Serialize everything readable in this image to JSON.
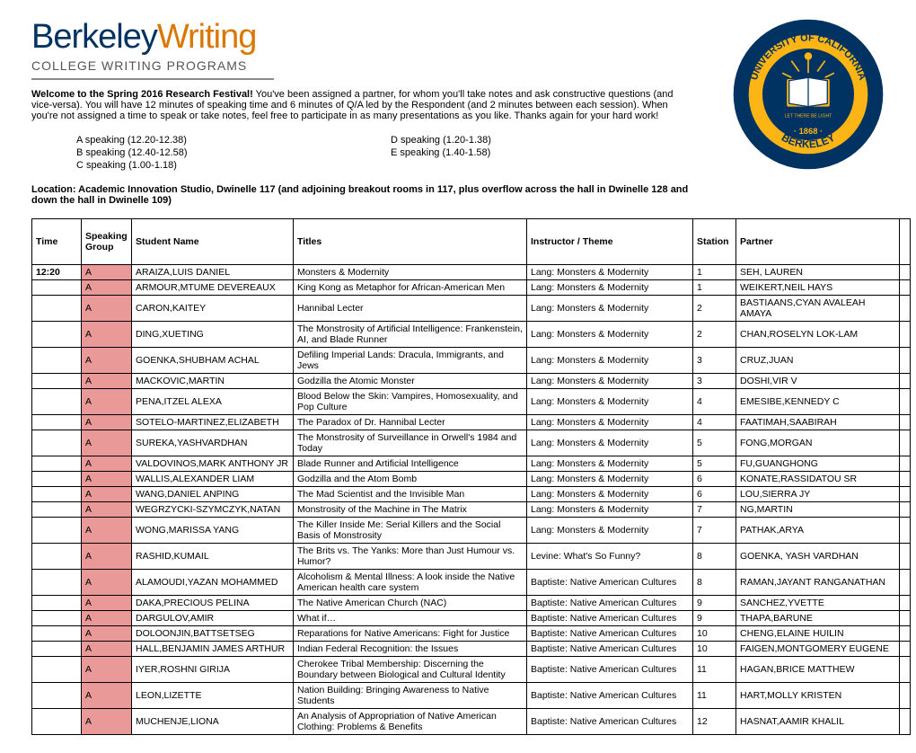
{
  "logo": {
    "p1": "Berkeley",
    "p2": "Writing",
    "sub": "COLLEGE WRITING PROGRAMS"
  },
  "introB": "Welcome to the Spring 2016 Research Festival!",
  "intro": " You've been assigned a partner, for whom you'll take notes and ask constructive questions (and vice-versa). You will have 12 minutes of speaking time and 6 minutes of Q/A led by the Respondent (and 2 minutes between each session). When you're not assigned a time to speak or take notes, feel free to participate in as many presentations as you like. Thanks again for your hard work!",
  "speakL": [
    "A speaking (12.20-12.38)",
    "B speaking (12.40-12.58)",
    "C speaking (1.00-1.18)"
  ],
  "speakR": [
    "D speaking (1.20-1.38)",
    "E speaking (1.40-1.58)",
    ""
  ],
  "location": "Location: Academic Innovation Studio, Dwinelle 117 (and adjoining breakout rooms in 117, plus overflow across the hall in Dwinelle 128 and down the hall in Dwinelle 109)",
  "headers": {
    "time": "Time",
    "grp": "Speaking Group",
    "name": "Student Name",
    "titles": "Titles",
    "instr": "Instructor / Theme",
    "stn": "Station",
    "partner": "Partner"
  },
  "timeLabel": "12:20",
  "rows": [
    [
      "A",
      "ARAIZA,LUIS DANIEL",
      "Monsters & Modernity",
      "Lang: Monsters & Modernity",
      "1",
      "SEH, LAUREN"
    ],
    [
      "A",
      "ARMOUR,MTUME DEVEREAUX",
      "King Kong as Metaphor for African-American Men",
      "Lang: Monsters & Modernity",
      "1",
      "WEIKERT,NEIL HAYS"
    ],
    [
      "A",
      "CARON,KAITEY",
      "Hannibal Lecter",
      "Lang: Monsters & Modernity",
      "2",
      "BASTIAANS,CYAN AVALEAH AMAYA"
    ],
    [
      "A",
      "DING,XUETING",
      "The Monstrosity of Artificial Intelligence: Frankenstein, AI, and Blade Runner",
      "Lang: Monsters & Modernity",
      "2",
      "CHAN,ROSELYN LOK-LAM"
    ],
    [
      "A",
      "GOENKA,SHUBHAM ACHAL",
      "Defiling Imperial Lands: Dracula, Immigrants, and Jews",
      "Lang: Monsters & Modernity",
      "3",
      "CRUZ,JUAN"
    ],
    [
      "A",
      "MACKOVIC,MARTIN",
      "Godzilla the Atomic Monster",
      "Lang: Monsters & Modernity",
      "3",
      "DOSHI,VIR V"
    ],
    [
      "A",
      "PENA,ITZEL ALEXA",
      "Blood Below the Skin: Vampires, Homosexuality, and Pop Culture",
      "Lang: Monsters & Modernity",
      "4",
      "EMESIBE,KENNEDY C"
    ],
    [
      "A",
      "SOTELO-MARTINEZ,ELIZABETH",
      "The Paradox of Dr. Hannibal Lecter",
      "Lang: Monsters & Modernity",
      "4",
      "FAATIMAH,SAABIRAH"
    ],
    [
      "A",
      "SUREKA,YASHVARDHAN",
      "The Monstrosity of Surveillance in Orwell's 1984 and Today",
      "Lang: Monsters & Modernity",
      "5",
      "FONG,MORGAN"
    ],
    [
      "A",
      "VALDOVINOS,MARK ANTHONY JR",
      "Blade Runner and Artificial Intelligence",
      "Lang: Monsters & Modernity",
      "5",
      "FU,GUANGHONG"
    ],
    [
      "A",
      "WALLIS,ALEXANDER LIAM",
      "Godzilla and the Atom Bomb",
      "Lang: Monsters & Modernity",
      "6",
      "KONATE,RASSIDATOU SR"
    ],
    [
      "A",
      "WANG,DANIEL ANPING",
      "The Mad Scientist and the Invisible Man",
      "Lang: Monsters & Modernity",
      "6",
      "LOU,SIERRA JY"
    ],
    [
      "A",
      "WEGRZYCKI-SZYMCZYK,NATAN",
      "Monstrosity of the Machine in The Matrix",
      "Lang: Monsters & Modernity",
      "7",
      "NG,MARTIN"
    ],
    [
      "A",
      "WONG,MARISSA YANG",
      "The Killer Inside Me: Serial Killers and the Social Basis of Monstrosity",
      "Lang: Monsters & Modernity",
      "7",
      "PATHAK,ARYA"
    ],
    [
      "A",
      "RASHID,KUMAIL",
      "The Brits vs. The Yanks: More than Just Humour vs. Humor?",
      "Levine: What's So Funny?",
      "8",
      "GOENKA, YASH VARDHAN"
    ],
    [
      "A",
      "ALAMOUDI,YAZAN MOHAMMED",
      "Alcoholism & Mental Illness: A look inside the Native American health care system",
      "Baptiste: Native American Cultures",
      "8",
      "RAMAN,JAYANT RANGANATHAN"
    ],
    [
      "A",
      "DAKA,PRECIOUS PELINA",
      "The Native American Church (NAC)",
      "Baptiste: Native American Cultures",
      "9",
      "SANCHEZ,YVETTE"
    ],
    [
      "A",
      "DARGULOV,AMIR",
      "What if…",
      "Baptiste: Native American Cultures",
      "9",
      "THAPA,BARUNE"
    ],
    [
      "A",
      "DOLOONJIN,BATTSETSEG",
      "Reparations for Native Americans: Fight for Justice",
      "Baptiste: Native American Cultures",
      "10",
      "CHENG,ELAINE HUILIN"
    ],
    [
      "A",
      "HALL,BENJAMIN JAMES ARTHUR",
      "Indian Federal Recognition: the Issues",
      "Baptiste: Native American Cultures",
      "10",
      "FAIGEN,MONTGOMERY EUGENE"
    ],
    [
      "A",
      "IYER,ROSHNI GIRIJA",
      "Cherokee Tribal Membership: Discerning the Boundary between\nBiological and Cultural Identity",
      "Baptiste: Native American Cultures",
      "11",
      "HAGAN,BRICE MATTHEW"
    ],
    [
      "A",
      "LEON,LIZETTE",
      "Nation Building: Bringing Awareness to Native Students",
      "Baptiste: Native American Cultures",
      "11",
      "HART,MOLLY KRISTEN"
    ],
    [
      "A",
      "MUCHENJE,LIONA",
      "An Analysis of Appropriation of Native American Clothing: Problems & Benefits",
      "Baptiste: Native American Cultures",
      "12",
      "HASNAT,AAMIR KHALIL"
    ]
  ],
  "seal": {
    "outer": "#003262",
    "gold": "#fdb515",
    "motto1": "UNIVERSITY OF CALIFORNIA",
    "motto2": "BERKELEY",
    "year": "· 1868 ·",
    "light": "LET THERE BE  LIGHT"
  }
}
